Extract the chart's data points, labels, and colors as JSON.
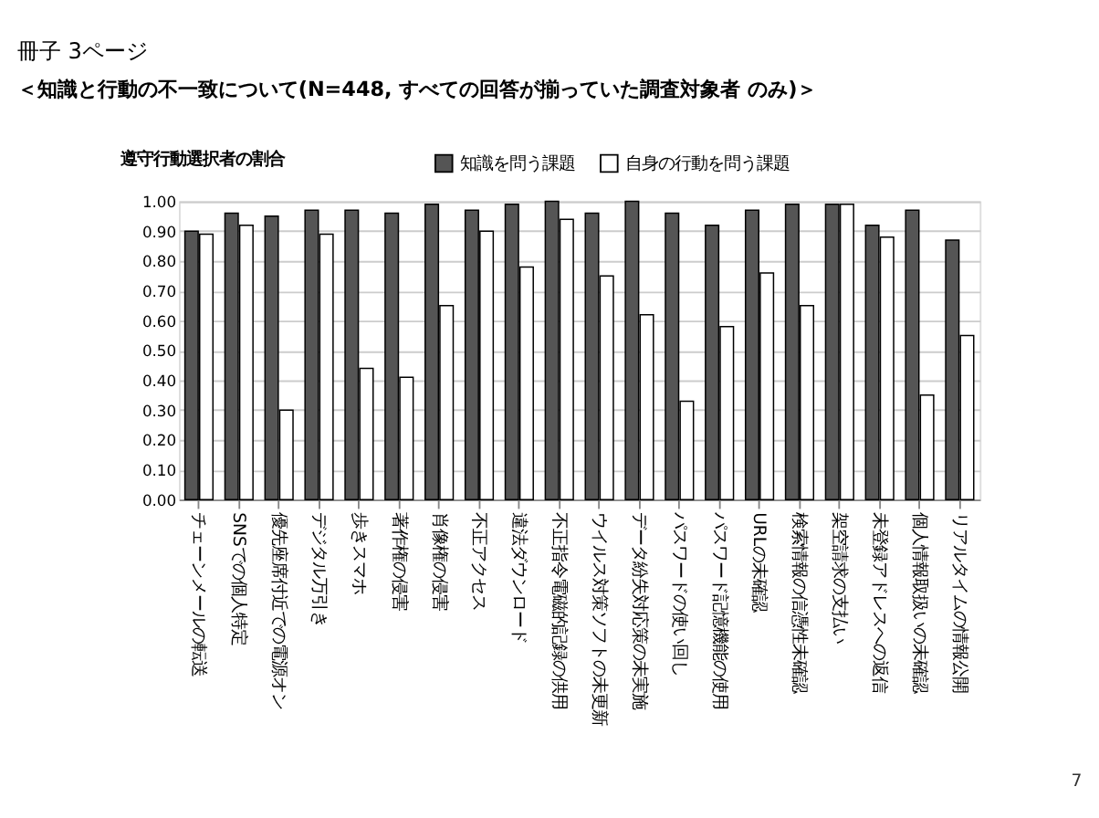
{
  "chart_data": {
    "type": "bar",
    "title": "冊子 3ページ",
    "subtitle": "＜知識と行動の不一致について(N=448, すべての回答が揃っていた調査対象者 のみ)＞",
    "ylabel": "遵守行動選択者の割合",
    "categories": [
      "チェーンメールの転送",
      "SNSでの個人特定",
      "優先座席付近での電源オン",
      "デジタル万引き",
      "歩きスマホ",
      "著作権の侵害",
      "肖像権の侵害",
      "不正アクセス",
      "違法ダウンロード",
      "不正指令電磁的記録の供用",
      "ウイルス対策ソフトの未更新",
      "データ紛失対応策の未実施",
      "パスワードの使い回し",
      "パスワード記憶機能の使用",
      "URLの未確認",
      "検索情報の信憑性未確認",
      "架空請求の支払い",
      "未登録アドレスへの返信",
      "個人情報取扱いの未確認",
      "リアルタイムの情報公開"
    ],
    "series": [
      {
        "name": "知識を問う課題",
        "color": "#555555",
        "values": [
          0.9,
          0.96,
          0.95,
          0.97,
          0.97,
          0.96,
          0.99,
          0.97,
          0.99,
          1.0,
          0.96,
          1.0,
          0.96,
          0.92,
          0.97,
          0.99,
          0.99,
          0.92,
          0.97,
          0.87
        ]
      },
      {
        "name": "自身の行動を問う課題",
        "color": "#ffffff",
        "values": [
          0.89,
          0.92,
          0.3,
          0.89,
          0.44,
          0.41,
          0.65,
          0.9,
          0.78,
          0.94,
          0.75,
          0.62,
          0.33,
          0.58,
          0.76,
          0.65,
          0.99,
          0.88,
          0.35,
          0.55
        ]
      }
    ],
    "ylim": [
      0,
      1
    ],
    "yticks": [
      {
        "value": 0,
        "label": "0.00"
      },
      {
        "value": 0.1,
        "label": "0.10"
      },
      {
        "value": 0.2,
        "label": "0.20"
      },
      {
        "value": 0.3,
        "label": "0.30"
      },
      {
        "value": 0.4,
        "label": "0.40"
      },
      {
        "value": 0.5,
        "label": "0.50"
      },
      {
        "value": 0.6,
        "label": "0.60"
      },
      {
        "value": 0.7,
        "label": "0.70"
      },
      {
        "value": 0.8,
        "label": "0.80"
      },
      {
        "value": 0.9,
        "label": "0.90"
      },
      {
        "value": 1,
        "label": "1.00"
      }
    ],
    "grid": "y",
    "legend": "top",
    "annotations": [
      "7"
    ]
  }
}
